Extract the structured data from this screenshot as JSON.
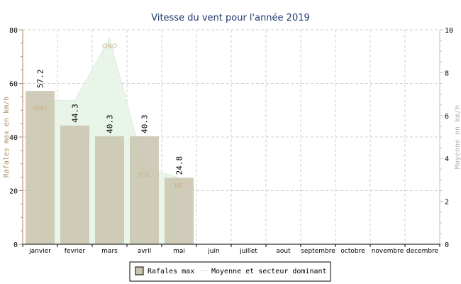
{
  "chart_data": {
    "type": "bar",
    "title": "Vitesse du vent pour l'année 2019",
    "categories": [
      "janvier",
      "fevrier",
      "mars",
      "avril",
      "mai",
      "juin",
      "juillet",
      "aout",
      "septembre",
      "octobre",
      "novembre",
      "decembre"
    ],
    "ylabel": "Rafales max en km/h",
    "y2label": "Moyenne en km/h",
    "ylim": [
      0,
      80
    ],
    "y_ticks": [
      "0",
      "20",
      "40",
      "60",
      "80"
    ],
    "y2lim": [
      0,
      10
    ],
    "y2_ticks": [
      "0",
      "2",
      "4",
      "6",
      "8",
      "10"
    ],
    "grid": true,
    "legend_position": "bottom",
    "series": [
      {
        "name": "Rafales max",
        "kind": "bar",
        "axis": "left",
        "color": "#c9c3ae",
        "values": [
          57.2,
          44.3,
          40.3,
          40.3,
          24.8,
          null,
          null,
          null,
          null,
          null,
          null,
          null
        ],
        "labels": [
          "57.2",
          "44.3",
          "40.3",
          "40.3",
          "24.8",
          "",
          "",
          "",
          "",
          "",
          "",
          ""
        ]
      },
      {
        "name": "Moyenne et secteur dominant",
        "kind": "area",
        "axis": "right",
        "color": "#e9f5e9",
        "values": [
          6.7,
          6.7,
          9.6,
          3.6,
          3.1,
          null,
          null,
          null,
          null,
          null,
          null,
          null
        ],
        "directions": [
          "NNO",
          "",
          "ONO",
          "ESE",
          "NE",
          "",
          "",
          "",
          "",
          "",
          "",
          ""
        ]
      }
    ]
  }
}
